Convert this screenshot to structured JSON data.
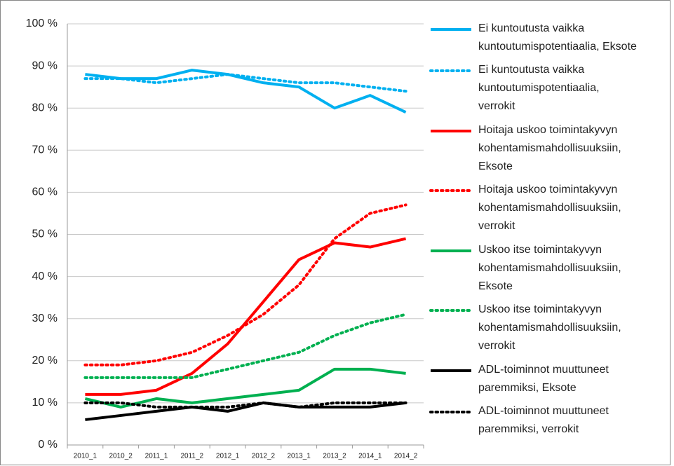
{
  "chart_data": {
    "type": "line",
    "categories": [
      "2010_1",
      "2010_2",
      "2011_1",
      "2011_2",
      "2012_1",
      "2012_2",
      "2013_1",
      "2013_2",
      "2014_1",
      "2014_2"
    ],
    "series": [
      {
        "name": "Ei kuntoutusta vaikka kuntoutumispotentiaalia, Eksote",
        "color": "#00b0f0",
        "line_style": "solid",
        "values": [
          88,
          87,
          87,
          89,
          88,
          86,
          85,
          80,
          83,
          79
        ]
      },
      {
        "name": "Ei kuntoutusta vaikka kuntoutumispotentiaalia, verrokit",
        "color": "#00b0f0",
        "line_style": "dotted",
        "values": [
          87,
          87,
          86,
          87,
          88,
          87,
          86,
          86,
          85,
          84
        ]
      },
      {
        "name": "Hoitaja uskoo toimintakyvyn kohentamismahdollisuuksiin, Eksote",
        "color": "#ff0000",
        "line_style": "solid",
        "values": [
          12,
          12,
          13,
          17,
          24,
          34,
          44,
          48,
          47,
          49
        ]
      },
      {
        "name": "Hoitaja uskoo toimintakyvyn kohentamismahdollisuuksiin, verrokit",
        "color": "#ff0000",
        "line_style": "dotted",
        "values": [
          19,
          19,
          20,
          22,
          26,
          31,
          38,
          49,
          55,
          57
        ]
      },
      {
        "name": "Uskoo itse toimintakyvyn kohentamismahdollisuuksiin, Eksote",
        "color": "#00b050",
        "line_style": "solid",
        "values": [
          11,
          9,
          11,
          10,
          11,
          12,
          13,
          18,
          18,
          17
        ]
      },
      {
        "name": "Uskoo itse toimintakyvyn kohentamismahdollisuuksiin, verrokit",
        "color": "#00b050",
        "line_style": "dotted",
        "values": [
          16,
          16,
          16,
          16,
          18,
          20,
          22,
          26,
          29,
          31
        ]
      },
      {
        "name": "ADL-toiminnot muuttuneet paremmiksi, Eksote",
        "color": "#000000",
        "line_style": "solid",
        "values": [
          6,
          7,
          8,
          9,
          8,
          10,
          9,
          9,
          9,
          10
        ]
      },
      {
        "name": "ADL-toiminnot muuttuneet paremmiksi, verrokit",
        "color": "#000000",
        "line_style": "dotted",
        "values": [
          10,
          10,
          9,
          9,
          9,
          10,
          9,
          10,
          10,
          10
        ]
      }
    ],
    "ylim": [
      0,
      100
    ],
    "yticks": [
      {
        "value": 0,
        "label": "0 %"
      },
      {
        "value": 10,
        "label": "10 %"
      },
      {
        "value": 20,
        "label": "20 %"
      },
      {
        "value": 30,
        "label": "30 %"
      },
      {
        "value": 40,
        "label": "40 %"
      },
      {
        "value": 50,
        "label": "50 %"
      },
      {
        "value": 60,
        "label": "60 %"
      },
      {
        "value": 70,
        "label": "70 %"
      },
      {
        "value": 80,
        "label": "80 %"
      },
      {
        "value": 90,
        "label": "90 %"
      },
      {
        "value": 100,
        "label": "100 %"
      }
    ],
    "grid": true,
    "legend": "right"
  }
}
